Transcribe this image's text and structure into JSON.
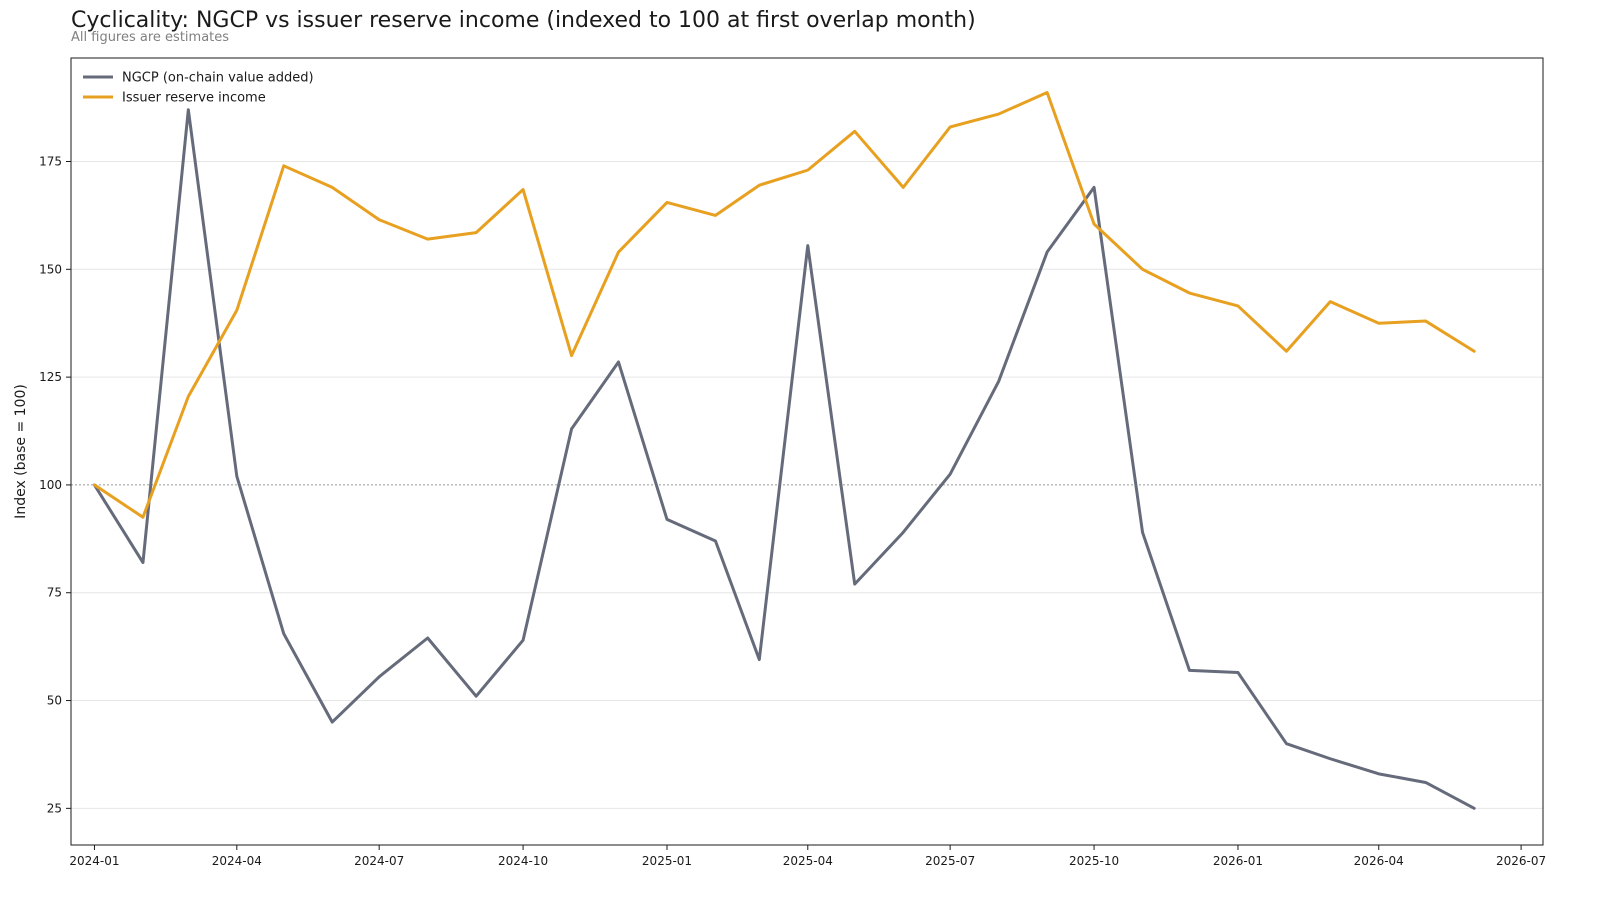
{
  "chart_data": {
    "type": "line",
    "title": "Cyclicality: NGCP vs issuer reserve income (indexed to 100 at first overlap month)",
    "subtitle": "All figures are estimates",
    "xlabel": "",
    "ylabel": "Index (base = 100)",
    "x": [
      "2024-01",
      "2024-02",
      "2024-03",
      "2024-04",
      "2024-05",
      "2024-06",
      "2024-07",
      "2024-08",
      "2024-09",
      "2024-10",
      "2024-11",
      "2024-12",
      "2025-01",
      "2025-02",
      "2025-03",
      "2025-04",
      "2025-05",
      "2025-06",
      "2025-07",
      "2025-08",
      "2025-09",
      "2025-10",
      "2025-11",
      "2025-12",
      "2026-01",
      "2026-02",
      "2026-03",
      "2026-04",
      "2026-05",
      "2026-06"
    ],
    "xlim": [
      "2023-12-17",
      "2026-07-15"
    ],
    "ylim": [
      16.5,
      199
    ],
    "x_ticks": [
      "2024-01",
      "2024-04",
      "2024-07",
      "2024-10",
      "2025-01",
      "2025-04",
      "2025-07",
      "2025-10",
      "2026-01",
      "2026-04",
      "2026-07"
    ],
    "y_ticks": [
      25,
      50,
      75,
      100,
      125,
      150,
      175
    ],
    "reference_line": 100,
    "grid": "horizontal",
    "legend_position": "top-left",
    "series": [
      {
        "name": "NGCP (on-chain value added)",
        "color": "#656b7a",
        "values": [
          100,
          82,
          187,
          102,
          65.5,
          45,
          55.5,
          64.5,
          51,
          64,
          113,
          128.5,
          92,
          87,
          59.5,
          155.5,
          77,
          89,
          102.5,
          124,
          154,
          169,
          89,
          57,
          56.5,
          40,
          36.5,
          33,
          31,
          25
        ]
      },
      {
        "name": "Issuer reserve income",
        "color": "#e8a020",
        "values": [
          100,
          92.5,
          120.5,
          140.5,
          174,
          169,
          161.5,
          157,
          158.5,
          168.5,
          130,
          154,
          165.5,
          162.5,
          169.5,
          173,
          182,
          169,
          183,
          186,
          191,
          160.5,
          150,
          144.5,
          141.5,
          131,
          142.5,
          137.5,
          138,
          131
        ]
      }
    ]
  }
}
